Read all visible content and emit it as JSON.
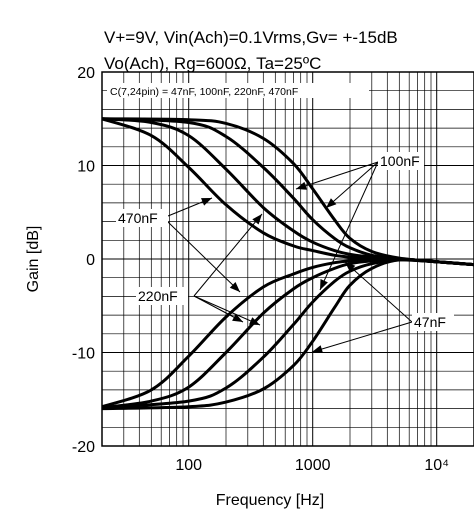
{
  "chart_data": {
    "type": "line",
    "title": [
      "V+=9V, Vin(Ach)=0.1Vrms,Gv= +-15dB",
      "Vo(Ach), Rg=600Ω, Ta=25ºC"
    ],
    "xlabel": "Frequency  [Hz]",
    "ylabel": "Gain  [dB]",
    "x_scale": "log",
    "xlim": [
      20,
      20000
    ],
    "ylim": [
      -20,
      20
    ],
    "x_ticks": [
      {
        "value": 100,
        "label": "100"
      },
      {
        "value": 1000,
        "label": "1000"
      },
      {
        "value": 10000,
        "label": "10⁴"
      }
    ],
    "y_ticks": [
      {
        "value": 20,
        "label": "20"
      },
      {
        "value": 10,
        "label": "10"
      },
      {
        "value": 0,
        "label": "0"
      },
      {
        "value": -10,
        "label": "-10"
      },
      {
        "value": -20,
        "label": "-20"
      }
    ],
    "grid": true,
    "annotations": {
      "condition_box": "C(7,24pin) = 47nF, 100nF, 220nF, 470nF",
      "label_100nF": "100nF",
      "label_470nF": "470nF",
      "label_220nF": "220nF",
      "label_47nF": "47nF"
    },
    "series": [
      {
        "group": "boost",
        "capacitor": "47nF",
        "x": [
          20,
          100,
          200,
          400,
          700,
          1000,
          1500,
          2000,
          3000,
          5000,
          10000,
          20000
        ],
        "y": [
          15,
          14.9,
          14.5,
          12.9,
          10.2,
          7.5,
          4.2,
          2.2,
          0.8,
          0.1,
          -0.3,
          -0.6
        ]
      },
      {
        "group": "boost",
        "capacitor": "100nF",
        "x": [
          20,
          100,
          200,
          400,
          700,
          1000,
          1500,
          2000,
          3000,
          5000,
          10000,
          20000
        ],
        "y": [
          15,
          14.6,
          13.1,
          9.8,
          6.5,
          4.2,
          2.2,
          1.2,
          0.4,
          0,
          -0.3,
          -0.6
        ]
      },
      {
        "group": "boost",
        "capacitor": "220nF",
        "x": [
          20,
          50,
          100,
          200,
          400,
          700,
          1000,
          1500,
          2000,
          3000,
          5000,
          10000,
          20000
        ],
        "y": [
          15,
          14.6,
          13.2,
          9.6,
          5.5,
          3,
          1.8,
          0.9,
          0.5,
          0.2,
          0,
          -0.3,
          -0.6
        ]
      },
      {
        "group": "boost",
        "capacitor": "470nF",
        "x": [
          20,
          50,
          100,
          200,
          400,
          700,
          1000,
          1500,
          2000,
          3000,
          5000,
          10000,
          20000
        ],
        "y": [
          15,
          13.2,
          9.8,
          5.8,
          2.8,
          1.4,
          0.9,
          0.4,
          0.2,
          0,
          0,
          -0.3,
          -0.6
        ]
      },
      {
        "group": "cut",
        "capacitor": "470nF",
        "x": [
          20,
          50,
          100,
          200,
          400,
          700,
          1000,
          1500,
          2000,
          3000,
          5000,
          10000,
          20000
        ],
        "y": [
          -15.8,
          -14,
          -10.4,
          -6.2,
          -3,
          -1.6,
          -0.9,
          -0.4,
          -0.2,
          -0.1,
          0,
          -0.3,
          -0.6
        ]
      },
      {
        "group": "cut",
        "capacitor": "220nF",
        "x": [
          20,
          50,
          100,
          200,
          400,
          700,
          1000,
          1500,
          2000,
          3000,
          5000,
          10000,
          20000
        ],
        "y": [
          -15.9,
          -15.2,
          -13.7,
          -10,
          -5.8,
          -3.2,
          -2,
          -1,
          -0.5,
          -0.2,
          0,
          -0.3,
          -0.6
        ]
      },
      {
        "group": "cut",
        "capacitor": "100nF",
        "x": [
          20,
          100,
          200,
          400,
          700,
          1000,
          1500,
          2000,
          3000,
          5000,
          10000,
          20000
        ],
        "y": [
          -15.9,
          -15.2,
          -13.8,
          -10.5,
          -7,
          -4.6,
          -2.4,
          -1.3,
          -0.5,
          -0.1,
          -0.3,
          -0.6
        ]
      },
      {
        "group": "cut",
        "capacitor": "47nF",
        "x": [
          20,
          100,
          200,
          400,
          700,
          1000,
          1500,
          2000,
          3000,
          5000,
          10000,
          20000
        ],
        "y": [
          -16,
          -15.8,
          -15.3,
          -13.9,
          -11.4,
          -8.8,
          -5.2,
          -2.8,
          -1,
          -0.1,
          -0.3,
          -0.6
        ]
      }
    ]
  }
}
